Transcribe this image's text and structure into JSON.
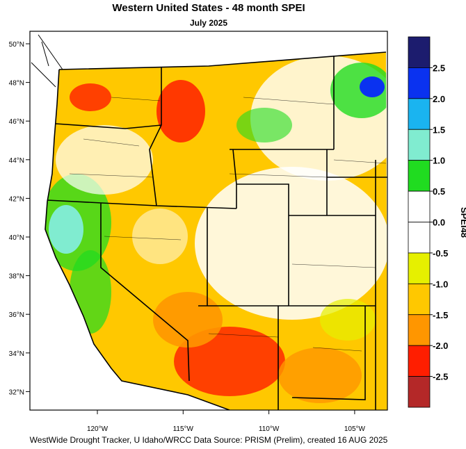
{
  "title": "Western United States - 48 month SPEI",
  "subtitle": "July 2025",
  "lat_labels": [
    "50°N",
    "48°N",
    "46°N",
    "44°N",
    "42°N",
    "40°N",
    "38°N",
    "36°N",
    "34°N",
    "32°N"
  ],
  "lon_labels": [
    "120°W",
    "115°W",
    "110°W",
    "105°W"
  ],
  "colorbar": {
    "label": "SPEI48",
    "colors": [
      "#1c1c6e",
      "#0a32f0",
      "#1ab4f0",
      "#80ecd0",
      "#20dc20",
      "#ffffff",
      "#ffffff",
      "#e6f000",
      "#ffc800",
      "#ff9600",
      "#ff1e00",
      "#b42828"
    ],
    "ticks": [
      2.5,
      {
        "value": 2,
        "label": "2.0"
      },
      1.5,
      {
        "value": 1,
        "label": "1.0"
      },
      0.5,
      {
        "value": 0,
        "label": "0.0"
      },
      -0.5,
      {
        "value": -1,
        "label": "-1.0"
      },
      -1.5,
      {
        "value": -2,
        "label": "-2.0"
      },
      -2.5
    ]
  },
  "footer": "WestWide Drought Tracker, U Idaho/WRCC Data Source: PRISM (Prelim), created 16 AUG 2025"
}
